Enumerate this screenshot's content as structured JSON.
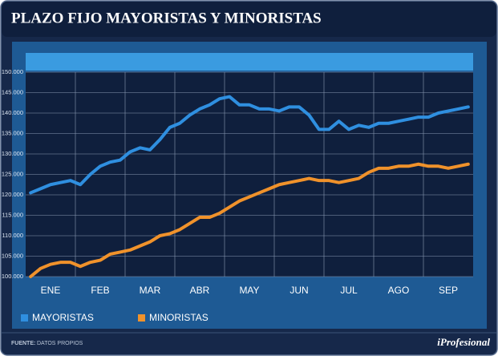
{
  "chart_data": {
    "type": "line",
    "title": "PLAZO FIJO MAYORISTAS Y MINORISTAS",
    "source": "FUENTE:",
    "source_text": "DATOS PROPIOS",
    "brand": "iProfesional",
    "categories": [
      null,
      null,
      "ENE",
      null,
      null,
      null,
      null,
      "FEB",
      null,
      null,
      null,
      null,
      "MAR",
      null,
      null,
      null,
      null,
      "ABR",
      null,
      null,
      null,
      null,
      "MAY",
      null,
      null,
      null,
      null,
      "JUN",
      null,
      null,
      null,
      null,
      "JUL",
      null,
      null,
      null,
      null,
      "AGO",
      null,
      null,
      null,
      null,
      "SEP",
      null,
      null
    ],
    "series": [
      {
        "name": "MAYORISTAS",
        "color": "#2f8fe0",
        "values": [
          120500,
          121500,
          122500,
          123000,
          123500,
          122500,
          125000,
          127000,
          128000,
          128500,
          130500,
          131500,
          131000,
          133500,
          136500,
          137500,
          139500,
          141000,
          142000,
          143500,
          144000,
          142000,
          142000,
          141000,
          141000,
          140500,
          141500,
          141500,
          139500,
          136000,
          136000,
          138000,
          136000,
          137000,
          136500,
          137500,
          137500,
          138000,
          138500,
          139000,
          139000,
          140000,
          140500,
          141000,
          141500
        ]
      },
      {
        "name": "MINORISTAS",
        "color": "#f0922b",
        "values": [
          100000,
          102000,
          103000,
          103500,
          103500,
          102500,
          103500,
          104000,
          105500,
          106000,
          106500,
          107500,
          108500,
          110000,
          110500,
          111500,
          113000,
          114500,
          114500,
          115500,
          117000,
          118500,
          119500,
          120500,
          121500,
          122500,
          123000,
          123500,
          124000,
          123500,
          123500,
          123000,
          123500,
          124000,
          125500,
          126500,
          126500,
          127000,
          127000,
          127500,
          127000,
          127000,
          126500,
          127000,
          127500
        ]
      }
    ],
    "ylim": [
      100000,
      150000
    ],
    "yticks": [
      {
        "value": 100000,
        "label": "100.000"
      },
      {
        "value": 105000,
        "label": "105.000"
      },
      {
        "value": 110000,
        "label": "110.000"
      },
      {
        "value": 115000,
        "label": "115.000"
      },
      {
        "value": 120000,
        "label": "120.000"
      },
      {
        "value": 125000,
        "label": "125.000"
      },
      {
        "value": 130000,
        "label": "130.000"
      },
      {
        "value": 135000,
        "label": "135.000"
      },
      {
        "value": 140000,
        "label": "140.000"
      },
      {
        "value": 145000,
        "label": "145.000"
      },
      {
        "value": 150000,
        "label": "150.000"
      }
    ],
    "grid": true
  }
}
